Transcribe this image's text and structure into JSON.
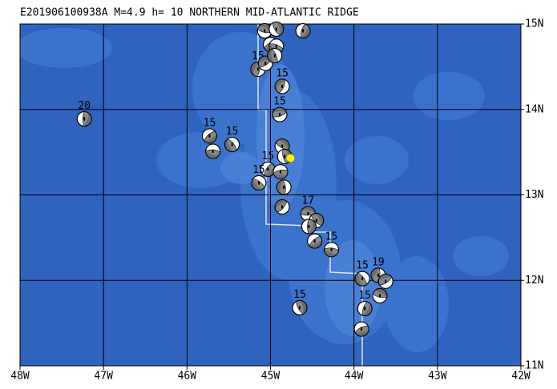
{
  "map": {
    "title": "E201906100938A M=4.9 h= 10 NORTHERN MID-ATLANTIC RIDGE",
    "xlim": [
      -48,
      -42
    ],
    "ylim": [
      11,
      15
    ],
    "xticks": [
      {
        "value": -48,
        "label": "48W"
      },
      {
        "value": -47,
        "label": "47W"
      },
      {
        "value": -46,
        "label": "46W"
      },
      {
        "value": -45,
        "label": "45W"
      },
      {
        "value": -44,
        "label": "44W"
      },
      {
        "value": -43,
        "label": "43W"
      },
      {
        "value": -42,
        "label": "42W"
      }
    ],
    "yticks": [
      {
        "value": 15,
        "label": "15N"
      },
      {
        "value": 14,
        "label": "14N"
      },
      {
        "value": 13,
        "label": "13N"
      },
      {
        "value": 12,
        "label": "12N"
      },
      {
        "value": 11,
        "label": "11N"
      }
    ],
    "grid": true,
    "epicenter": {
      "lon": -44.76,
      "lat": 13.43,
      "color": "#ffee00"
    },
    "events": [
      {
        "lon": -47.23,
        "lat": 13.89,
        "depth": 20
      },
      {
        "lon": -45.73,
        "lat": 13.69,
        "depth": 15
      },
      {
        "lon": -45.69,
        "lat": 13.51,
        "depth": null
      },
      {
        "lon": -45.46,
        "lat": 13.59,
        "depth": 15
      },
      {
        "lon": -45.15,
        "lat": 14.47,
        "depth": 15
      },
      {
        "lon": -45.06,
        "lat": 14.54,
        "depth": null
      },
      {
        "lon": -45.07,
        "lat": 14.92,
        "depth": null
      },
      {
        "lon": -44.93,
        "lat": 14.94,
        "depth": null
      },
      {
        "lon": -44.61,
        "lat": 14.92,
        "depth": null
      },
      {
        "lon": -45.0,
        "lat": 14.76,
        "depth": null
      },
      {
        "lon": -44.93,
        "lat": 14.74,
        "depth": null
      },
      {
        "lon": -44.95,
        "lat": 14.63,
        "depth": null
      },
      {
        "lon": -44.86,
        "lat": 14.27,
        "depth": 15
      },
      {
        "lon": -44.89,
        "lat": 13.94,
        "depth": 15
      },
      {
        "lon": -44.86,
        "lat": 13.57,
        "depth": null
      },
      {
        "lon": -44.83,
        "lat": 13.45,
        "depth": null
      },
      {
        "lon": -45.03,
        "lat": 13.3,
        "depth": 15
      },
      {
        "lon": -44.88,
        "lat": 13.27,
        "depth": null
      },
      {
        "lon": -45.14,
        "lat": 13.14,
        "depth": 15
      },
      {
        "lon": -44.84,
        "lat": 13.09,
        "depth": null
      },
      {
        "lon": -44.86,
        "lat": 12.86,
        "depth": null
      },
      {
        "lon": -44.55,
        "lat": 12.78,
        "depth": 17
      },
      {
        "lon": -44.45,
        "lat": 12.7,
        "depth": null
      },
      {
        "lon": -44.54,
        "lat": 12.63,
        "depth": null
      },
      {
        "lon": -44.47,
        "lat": 12.46,
        "depth": null
      },
      {
        "lon": -44.27,
        "lat": 12.36,
        "depth": 15
      },
      {
        "lon": -43.9,
        "lat": 12.02,
        "depth": 15
      },
      {
        "lon": -43.71,
        "lat": 12.06,
        "depth": 19
      },
      {
        "lon": -43.62,
        "lat": 11.99,
        "depth": null
      },
      {
        "lon": -43.69,
        "lat": 11.82,
        "depth": null
      },
      {
        "lon": -44.65,
        "lat": 11.68,
        "depth": 15
      },
      {
        "lon": -43.87,
        "lat": 11.67,
        "depth": 15
      },
      {
        "lon": -43.91,
        "lat": 11.43,
        "depth": null
      }
    ]
  }
}
